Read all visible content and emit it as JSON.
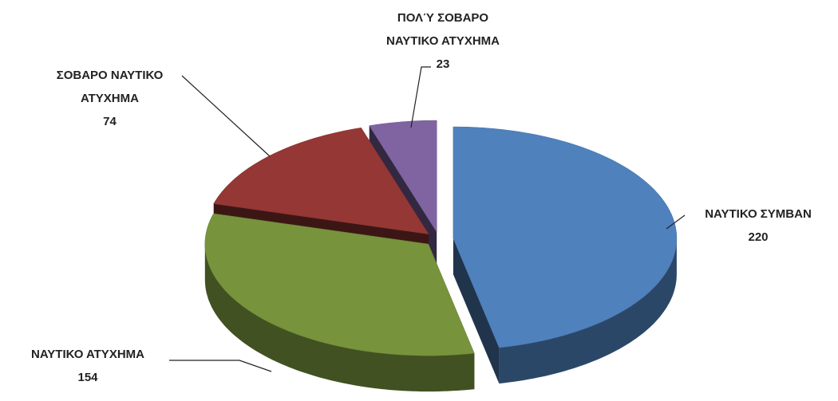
{
  "chart_data": {
    "type": "pie3d",
    "categories": [
      "ΝΑΥΤΙΚΟ ΣΥΜΒΑΝ",
      "ΝΑΥΤΙΚΟ ΑΤΥΧΗΜΑ",
      "ΣΟΒΑΡΟ ΝΑΥΤΙΚΟ ΑΤΥΧΗΜΑ",
      "ΠΟΛΎ ΣΟΒΑΡΟ ΝΑΥΤΙΚΟ ΑΤΥΧΗΜΑ"
    ],
    "values": [
      220,
      154,
      74,
      23
    ],
    "colors": [
      "#4f81bd",
      "#77933c",
      "#953735",
      "#8064a2"
    ]
  }
}
